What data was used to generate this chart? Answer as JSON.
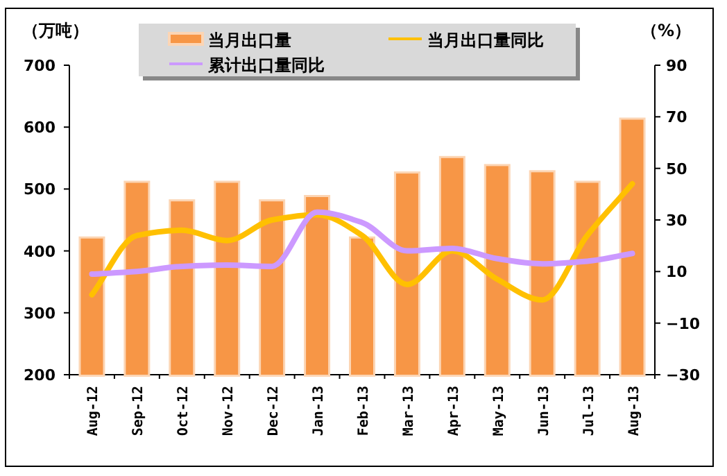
{
  "chart_data": {
    "type": "bar",
    "categories": [
      "Aug-12",
      "Sep-12",
      "Oct-12",
      "Nov-12",
      "Dec-12",
      "Jan-13",
      "Feb-13",
      "Mar-13",
      "Apr-13",
      "May-13",
      "Jun-13",
      "Jul-13",
      "Aug-13"
    ],
    "ylabel": "（万吨）",
    "y2label": "（%）",
    "ylim": [
      200,
      700
    ],
    "yticks": [
      200,
      300,
      400,
      500,
      600,
      700
    ],
    "y2lim": [
      -30,
      90
    ],
    "y2ticks": [
      -30,
      -10,
      10,
      30,
      50,
      70,
      90
    ],
    "grid": false,
    "legend": "top",
    "series": [
      {
        "name": "当月出口量",
        "color": "#f79646",
        "values": [
          420,
          510,
          480,
          510,
          480,
          487,
          420,
          525,
          550,
          537,
          527,
          510,
          612
        ]
      },
      {
        "name": "当月出口量同比",
        "type": "line",
        "axis": "y2",
        "color": "#ffc000",
        "values": [
          1,
          24,
          26,
          22,
          30,
          32,
          24,
          5,
          18,
          7,
          -1,
          24,
          44
        ]
      },
      {
        "name": "累计出口量同比",
        "type": "line",
        "axis": "y2",
        "color": "#cc99ff",
        "values": [
          9,
          10,
          12,
          12.5,
          12,
          33,
          29,
          18,
          19,
          15,
          13,
          14,
          17
        ]
      }
    ]
  }
}
